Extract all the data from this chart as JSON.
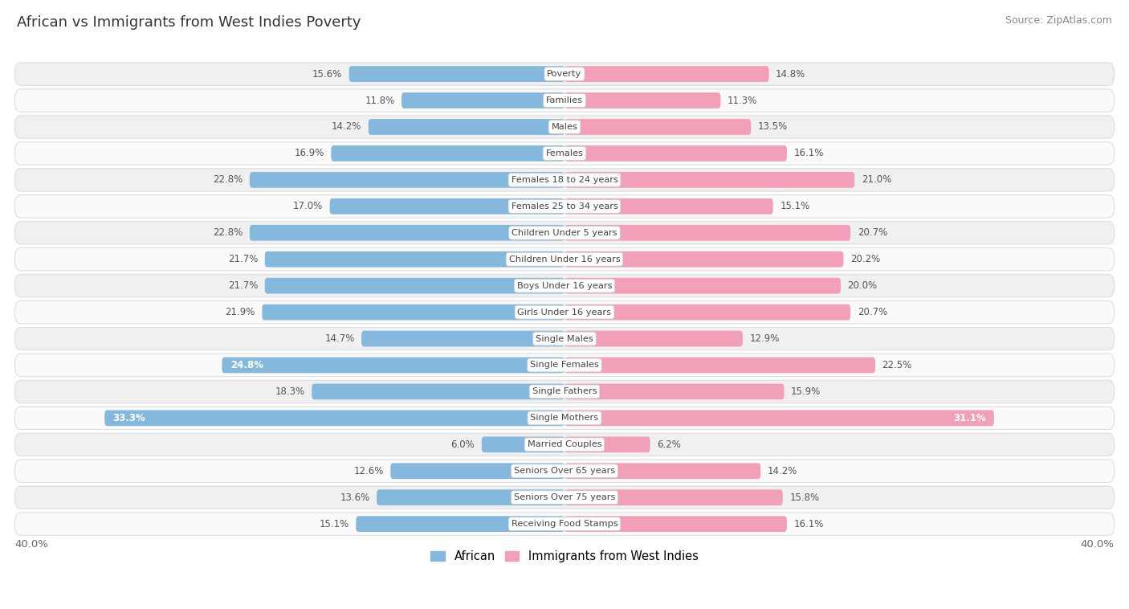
{
  "title": "African vs Immigrants from West Indies Poverty",
  "source": "Source: ZipAtlas.com",
  "categories": [
    "Poverty",
    "Families",
    "Males",
    "Females",
    "Females 18 to 24 years",
    "Females 25 to 34 years",
    "Children Under 5 years",
    "Children Under 16 years",
    "Boys Under 16 years",
    "Girls Under 16 years",
    "Single Males",
    "Single Females",
    "Single Fathers",
    "Single Mothers",
    "Married Couples",
    "Seniors Over 65 years",
    "Seniors Over 75 years",
    "Receiving Food Stamps"
  ],
  "african_values": [
    15.6,
    11.8,
    14.2,
    16.9,
    22.8,
    17.0,
    22.8,
    21.7,
    21.7,
    21.9,
    14.7,
    24.8,
    18.3,
    33.3,
    6.0,
    12.6,
    13.6,
    15.1
  ],
  "westindies_values": [
    14.8,
    11.3,
    13.5,
    16.1,
    21.0,
    15.1,
    20.7,
    20.2,
    20.0,
    20.7,
    12.9,
    22.5,
    15.9,
    31.1,
    6.2,
    14.2,
    15.8,
    16.1
  ],
  "african_color": "#85b8dd",
  "westindies_color": "#f2a0b8",
  "axis_max": 40.0,
  "bold_threshold": 24.0,
  "african_label": "African",
  "westindies_label": "Immigrants from West Indies",
  "background_color": "#ffffff",
  "row_color_even": "#f0f0f0",
  "row_color_odd": "#fafafa",
  "row_border_color": "#dedede",
  "label_dark": "#555555",
  "label_white": "#ffffff",
  "center_label_color": "#444444",
  "center_box_color": "#ffffff",
  "center_box_edge": "#cccccc",
  "axis_label_color": "#666666",
  "title_color": "#333333",
  "source_color": "#888888"
}
